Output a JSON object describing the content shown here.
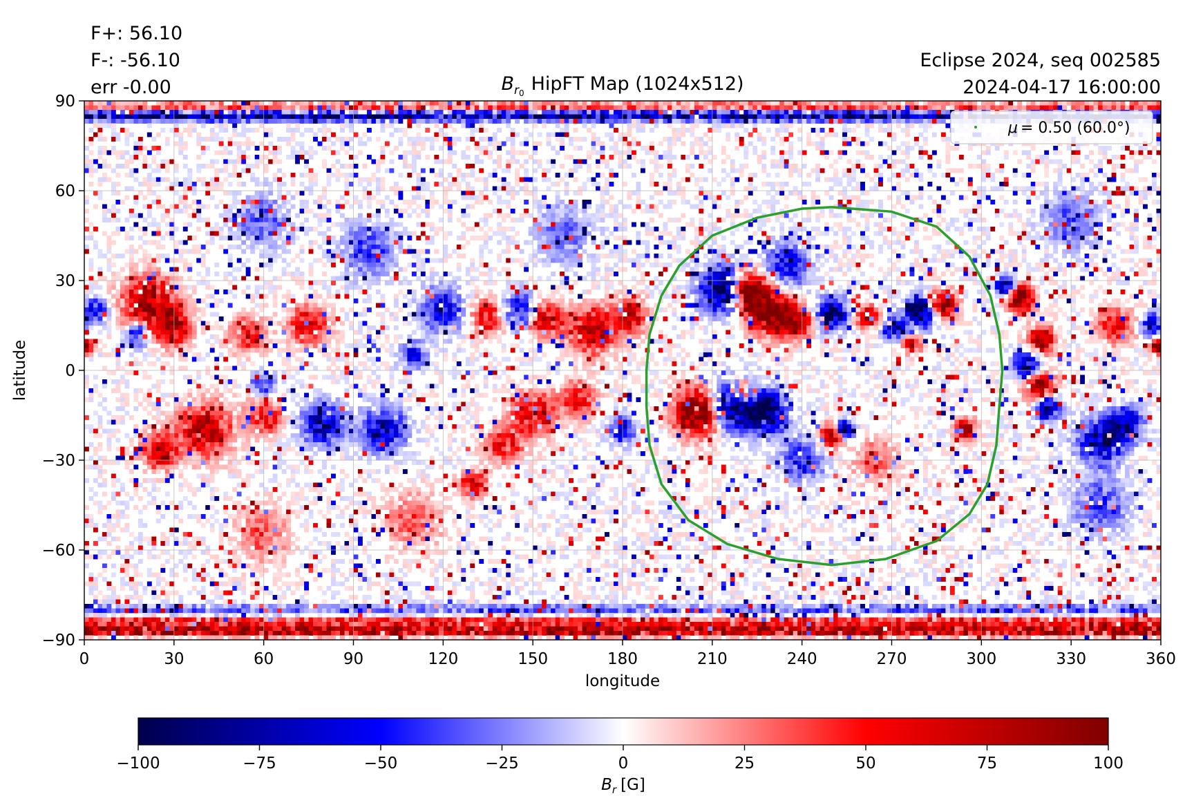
{
  "header": {
    "flux_plus": "F+: 56.10",
    "flux_minus": "F-: -56.10",
    "error": "err -0.00",
    "source": "Eclipse 2024, seq 002585",
    "datetime": "2024-04-17 16:00:00"
  },
  "chart_data": {
    "type": "heatmap",
    "title": "HipFT Map (1024x512)",
    "title_math": {
      "base": "B",
      "sub": "r",
      "subsub": "0"
    },
    "xlabel": "longitude",
    "ylabel": "latitude",
    "xlim": [
      0,
      360
    ],
    "ylim": [
      -90,
      90
    ],
    "xticks": [
      0,
      30,
      60,
      90,
      120,
      150,
      180,
      210,
      240,
      270,
      300,
      330,
      360
    ],
    "yticks": [
      -90,
      -60,
      -30,
      0,
      30,
      60,
      90
    ],
    "grid": true,
    "colormap": "seismic",
    "colors": {
      "negative": "#00004c",
      "mid_negative": "#0000ff",
      "zero": "#ffffff",
      "mid_positive": "#ff0000",
      "positive": "#800000",
      "contour": "#2ca02c"
    },
    "colorbar": {
      "range": [
        -100,
        100
      ],
      "ticks": [
        -100,
        -75,
        -50,
        -25,
        0,
        25,
        50,
        75,
        100
      ],
      "tick_labels": [
        "−100",
        "−75",
        "−50",
        "−25",
        "0",
        "25",
        "50",
        "75",
        "100"
      ],
      "label_base": "B",
      "label_sub": "r",
      "label_unit": "[G]"
    },
    "legend": {
      "placement": "top-right",
      "entries": [
        {
          "name": "= 0.50 (60.0°)",
          "symbol": "μ"
        }
      ]
    },
    "contour": {
      "name": "mu = 0.50",
      "points": [
        [
          250,
          54.5
        ],
        [
          270,
          53
        ],
        [
          285,
          48
        ],
        [
          296,
          38
        ],
        [
          303,
          25
        ],
        [
          306,
          12
        ],
        [
          307,
          0
        ],
        [
          306,
          -12
        ],
        [
          305,
          -25
        ],
        [
          302,
          -38
        ],
        [
          296,
          -48
        ],
        [
          285,
          -57
        ],
        [
          268,
          -63
        ],
        [
          250,
          -65
        ],
        [
          232,
          -63
        ],
        [
          215,
          -58
        ],
        [
          202,
          -50
        ],
        [
          193,
          -38
        ],
        [
          189,
          -25
        ],
        [
          188,
          -12
        ],
        [
          188,
          0
        ],
        [
          189,
          12
        ],
        [
          193,
          25
        ],
        [
          199,
          35
        ],
        [
          210,
          45
        ],
        [
          225,
          51
        ],
        [
          240,
          54
        ],
        [
          250,
          54.5
        ]
      ]
    },
    "active_regions": [
      {
        "lon": 214,
        "lat": 27,
        "polarity": -1,
        "strength": 1.0,
        "size": 5
      },
      {
        "lon": 222,
        "lat": 26,
        "polarity": 1,
        "strength": 1.0,
        "size": 4.5
      },
      {
        "lon": 230,
        "lat": 19,
        "polarity": 1,
        "strength": 0.9,
        "size": 5
      },
      {
        "lon": 238,
        "lat": 16,
        "polarity": 1,
        "strength": 0.7,
        "size": 3.5
      },
      {
        "lon": 250,
        "lat": 19,
        "polarity": -1,
        "strength": 0.8,
        "size": 3.5
      },
      {
        "lon": 262,
        "lat": 18,
        "polarity": 1,
        "strength": 0.7,
        "size": 2.5
      },
      {
        "lon": 271,
        "lat": 14,
        "polarity": -1,
        "strength": 0.7,
        "size": 2.5
      },
      {
        "lon": 280,
        "lat": 20,
        "polarity": -1,
        "strength": 0.9,
        "size": 3.5
      },
      {
        "lon": 287,
        "lat": 22,
        "polarity": 1,
        "strength": 0.9,
        "size": 3
      },
      {
        "lon": 277,
        "lat": 9,
        "polarity": 1,
        "strength": 0.7,
        "size": 2
      },
      {
        "lon": 205,
        "lat": -14,
        "polarity": 1,
        "strength": 1.0,
        "size": 5
      },
      {
        "lon": 218,
        "lat": -12,
        "polarity": -1,
        "strength": 1.0,
        "size": 5
      },
      {
        "lon": 228,
        "lat": -14,
        "polarity": -1,
        "strength": 0.9,
        "size": 4.5
      },
      {
        "lon": 220,
        "lat": -8,
        "polarity": 1,
        "strength": 0.8,
        "size": 3
      },
      {
        "lon": 250,
        "lat": -22,
        "polarity": 1,
        "strength": 0.8,
        "size": 2.5
      },
      {
        "lon": 254,
        "lat": -20,
        "polarity": -1,
        "strength": 0.8,
        "size": 2
      },
      {
        "lon": 295,
        "lat": -20,
        "polarity": 1,
        "strength": 0.7,
        "size": 2.5
      },
      {
        "lon": 313,
        "lat": 24,
        "polarity": 1,
        "strength": 1.0,
        "size": 3
      },
      {
        "lon": 308,
        "lat": 28,
        "polarity": -1,
        "strength": 0.9,
        "size": 2
      },
      {
        "lon": 320,
        "lat": 10,
        "polarity": 1,
        "strength": 0.8,
        "size": 3
      },
      {
        "lon": 315,
        "lat": 2,
        "polarity": -1,
        "strength": 0.7,
        "size": 3
      },
      {
        "lon": 320,
        "lat": -6,
        "polarity": 1,
        "strength": 0.8,
        "size": 3.5
      },
      {
        "lon": 322,
        "lat": -12,
        "polarity": -1,
        "strength": 0.8,
        "size": 3
      },
      {
        "lon": 340,
        "lat": -24,
        "polarity": -1,
        "strength": 0.7,
        "size": 5
      },
      {
        "lon": 348,
        "lat": -18,
        "polarity": -1,
        "strength": 0.6,
        "size": 4
      },
      {
        "lon": 345,
        "lat": 15,
        "polarity": 1,
        "strength": 0.5,
        "size": 4
      },
      {
        "lon": 357,
        "lat": 15,
        "polarity": -1,
        "strength": 0.6,
        "size": 2.5
      },
      {
        "lon": 359,
        "lat": 8,
        "polarity": 1,
        "strength": 0.8,
        "size": 1.5
      },
      {
        "lon": 1,
        "lat": 8,
        "polarity": 1,
        "strength": 0.8,
        "size": 1.5
      },
      {
        "lon": 4,
        "lat": 20,
        "polarity": -1,
        "strength": 0.6,
        "size": 2.5
      },
      {
        "lon": 22,
        "lat": 22,
        "polarity": 1,
        "strength": 0.8,
        "size": 6
      },
      {
        "lon": 30,
        "lat": 14,
        "polarity": 1,
        "strength": 0.6,
        "size": 4
      },
      {
        "lon": 18,
        "lat": 12,
        "polarity": -1,
        "strength": 0.5,
        "size": 3
      },
      {
        "lon": 55,
        "lat": 12,
        "polarity": 1,
        "strength": 0.5,
        "size": 4
      },
      {
        "lon": 75,
        "lat": 15,
        "polarity": 1,
        "strength": 0.5,
        "size": 4.5
      },
      {
        "lon": 40,
        "lat": -20,
        "polarity": 1,
        "strength": 0.7,
        "size": 6
      },
      {
        "lon": 25,
        "lat": -27,
        "polarity": 1,
        "strength": 0.6,
        "size": 4
      },
      {
        "lon": 60,
        "lat": -15,
        "polarity": 1,
        "strength": 0.5,
        "size": 4
      },
      {
        "lon": 80,
        "lat": -18,
        "polarity": -1,
        "strength": 0.7,
        "size": 4.5
      },
      {
        "lon": 100,
        "lat": -20,
        "polarity": -1,
        "strength": 0.6,
        "size": 5
      },
      {
        "lon": 60,
        "lat": -5,
        "polarity": -1,
        "strength": 0.4,
        "size": 3
      },
      {
        "lon": 120,
        "lat": 20,
        "polarity": -1,
        "strength": 0.5,
        "size": 5
      },
      {
        "lon": 135,
        "lat": 18,
        "polarity": 1,
        "strength": 0.5,
        "size": 4
      },
      {
        "lon": 145,
        "lat": 20,
        "polarity": -1,
        "strength": 0.5,
        "size": 4
      },
      {
        "lon": 155,
        "lat": 17,
        "polarity": 1,
        "strength": 0.6,
        "size": 4
      },
      {
        "lon": 170,
        "lat": 13,
        "polarity": 1,
        "strength": 0.7,
        "size": 5
      },
      {
        "lon": 182,
        "lat": 18,
        "polarity": 1,
        "strength": 0.6,
        "size": 4
      },
      {
        "lon": 150,
        "lat": -15,
        "polarity": 1,
        "strength": 0.6,
        "size": 5
      },
      {
        "lon": 140,
        "lat": -25,
        "polarity": 1,
        "strength": 0.5,
        "size": 4
      },
      {
        "lon": 165,
        "lat": -10,
        "polarity": 1,
        "strength": 0.5,
        "size": 4
      },
      {
        "lon": 130,
        "lat": -38,
        "polarity": 1,
        "strength": 0.6,
        "size": 3
      },
      {
        "lon": 180,
        "lat": -20,
        "polarity": -1,
        "strength": 0.5,
        "size": 3
      },
      {
        "lon": 110,
        "lat": 5,
        "polarity": -1,
        "strength": 0.4,
        "size": 3
      },
      {
        "lon": 235,
        "lat": 35,
        "polarity": -1,
        "strength": 0.5,
        "size": 5
      },
      {
        "lon": 240,
        "lat": -30,
        "polarity": -1,
        "strength": 0.4,
        "size": 5
      },
      {
        "lon": 265,
        "lat": -30,
        "polarity": 1,
        "strength": 0.3,
        "size": 5
      },
      {
        "lon": 95,
        "lat": 40,
        "polarity": -1,
        "strength": 0.35,
        "size": 6
      },
      {
        "lon": 160,
        "lat": 45,
        "polarity": -1,
        "strength": 0.3,
        "size": 6
      },
      {
        "lon": 60,
        "lat": 50,
        "polarity": -1,
        "strength": 0.3,
        "size": 6
      },
      {
        "lon": 110,
        "lat": -50,
        "polarity": 1,
        "strength": 0.3,
        "size": 6
      },
      {
        "lon": 60,
        "lat": -55,
        "polarity": 1,
        "strength": 0.3,
        "size": 6
      },
      {
        "lon": 330,
        "lat": 50,
        "polarity": -1,
        "strength": 0.3,
        "size": 6
      },
      {
        "lon": 340,
        "lat": -45,
        "polarity": -1,
        "strength": 0.35,
        "size": 6
      }
    ],
    "polar_bands": [
      {
        "lat": 85,
        "polarity": -1,
        "strength": 0.85
      },
      {
        "lat": 88,
        "polarity": 1,
        "strength": 0.4
      },
      {
        "lat": -87,
        "polarity": 1,
        "strength": 0.9
      },
      {
        "lat": -84,
        "polarity": 1,
        "strength": 0.55
      },
      {
        "lat": -80,
        "polarity": -1,
        "strength": 0.35
      }
    ]
  }
}
